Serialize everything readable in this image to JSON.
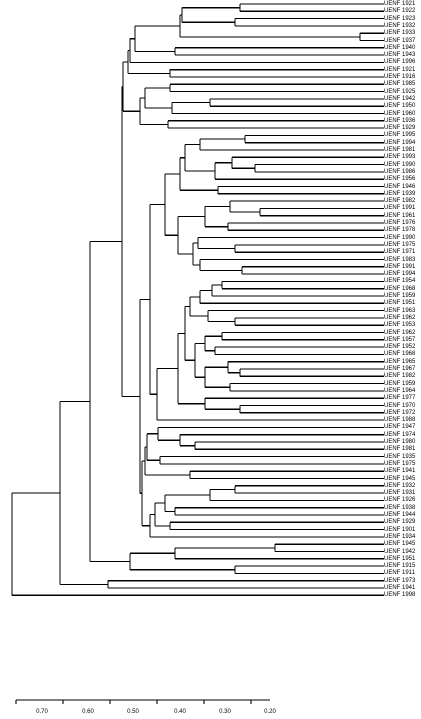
{
  "dendrogram": {
    "leaves": [
      "UENF 1921",
      "UENF 1922",
      "UENF 1923",
      "UENF 1932",
      "UENF 1933",
      "UENF 1937",
      "UENF 1940",
      "UENF 1943",
      "UENF 1996",
      "UENF 1921",
      "UENF 1916",
      "UENF 1985",
      "UENF 1925",
      "UENF 1942",
      "UENF 1950",
      "UENF 1960",
      "UENF 1936",
      "UENF 1929",
      "UENF 1995",
      "UENF 1994",
      "UENF 1981",
      "UENF 1993",
      "UENF 1990",
      "UENF 1986",
      "UENF 1956",
      "UENF 1946",
      "UENF 1939",
      "UENF 1982",
      "UENF 1991",
      "UENF 1961",
      "UENF 1976",
      "UENF 1978",
      "UENF 1990",
      "UENF 1975",
      "UENF 1971",
      "UENF 1983",
      "UENF 1991",
      "UENF 1994",
      "UENF 1954",
      "UENF 1968",
      "UENF 1959",
      "UENF 1951",
      "UENF 1963",
      "UENF 1962",
      "UENF 1953",
      "UENF 1962",
      "UENF 1957",
      "UENF 1952",
      "UENF 1968",
      "UENF 1965",
      "UENF 1967",
      "UENF 1982",
      "UENF 1959",
      "UENF 1964",
      "UENF 1977",
      "UENF 1970",
      "UENF 1972",
      "UENF 1988",
      "UENF 1947",
      "UENF 1974",
      "UENF 1980",
      "UENF 1981",
      "UENF 1935",
      "UENF 1975",
      "UENF 1941",
      "UENF 1945",
      "UENF 1932",
      "UENF 1931",
      "UENF 1926",
      "UENF 1938",
      "UENF 1944",
      "UENF 1929",
      "UENF 1901",
      "UENF 1934",
      "UENF 1945",
      "UENF 1942",
      "UENF 1951",
      "UENF 1915",
      "UENF 1911",
      "UENF 1973",
      "UENF 1941",
      "UENF 1998"
    ]
  },
  "axis": {
    "ticks": [
      "0.70",
      "0.60",
      "0.50",
      "0.40",
      "0.30",
      "0.20"
    ]
  }
}
